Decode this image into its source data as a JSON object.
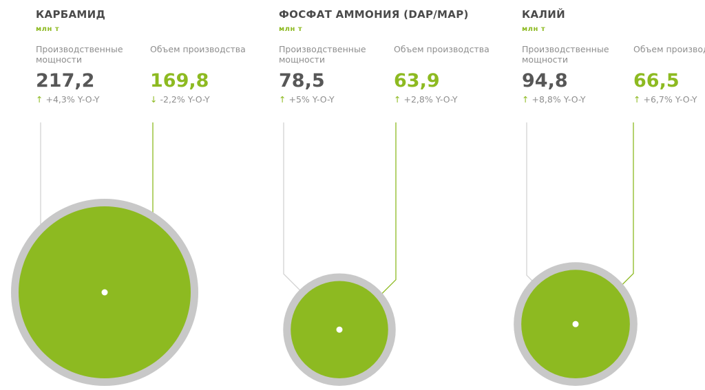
{
  "colors": {
    "capacity": "#c8c8c8",
    "production": "#8dba21",
    "capacity_line": "#d2d2d2",
    "production_line": "#8dba21"
  },
  "chart_data": [
    {
      "type": "bubble",
      "title": "КАРБАМИД",
      "unit": "млн т",
      "capacity_label": "Производственные мощности",
      "production_label": "Объем производства",
      "capacity": 217.2,
      "capacity_text": "217,2",
      "capacity_yoy": "+4,3% Y-O-Y",
      "capacity_arrow": "↑",
      "production": 169.8,
      "production_text": "169,8",
      "production_yoy": "-2,2% Y-O-Y",
      "production_arrow": "↓"
    },
    {
      "type": "bubble",
      "title": "ФОСФАТ АММОНИЯ (DAP/MAP)",
      "unit": "млн т",
      "capacity_label": "Производственные мощности",
      "production_label": "Объем производства",
      "capacity": 78.5,
      "capacity_text": "78,5",
      "capacity_yoy": "+5% Y-O-Y",
      "capacity_arrow": "↑",
      "production": 63.9,
      "production_text": "63,9",
      "production_yoy": "+2,8% Y-O-Y",
      "production_arrow": "↑"
    },
    {
      "type": "bubble",
      "title": "КАЛИЙ",
      "unit": "млн т",
      "capacity_label": "Производственные мощности",
      "production_label": "Объем производства",
      "capacity": 94.8,
      "capacity_text": "94,8",
      "capacity_yoy": "+8,8% Y-O-Y",
      "capacity_arrow": "↑",
      "production": 66.5,
      "production_text": "66,5",
      "production_yoy": "+6,7% Y-O-Y",
      "production_arrow": "↑"
    }
  ]
}
